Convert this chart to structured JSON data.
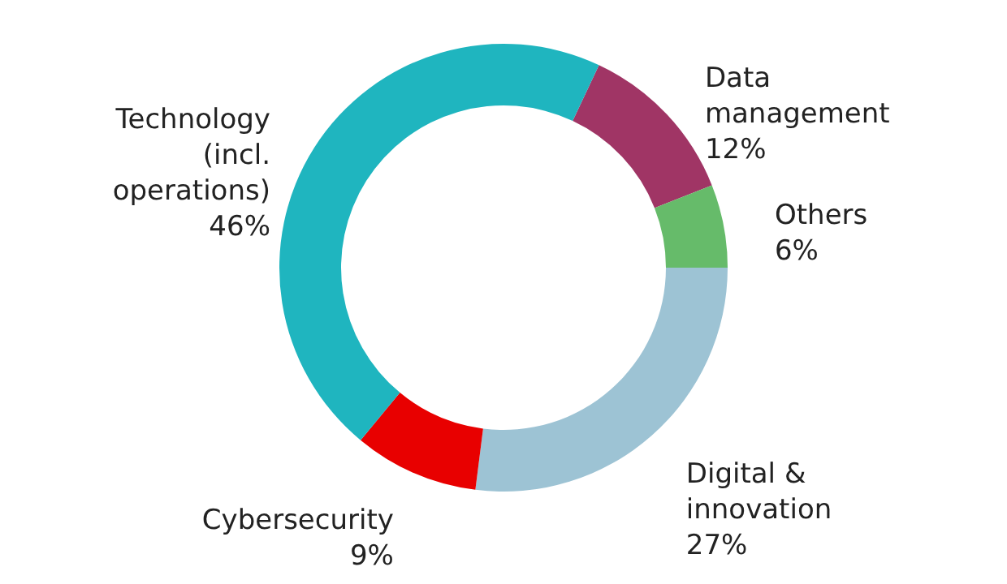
{
  "chart_data": {
    "type": "donut",
    "categories": [
      "Data management",
      "Others",
      "Digital & innovation",
      "Cybersecurity",
      "Technology (incl. operations)"
    ],
    "values": [
      12,
      6,
      27,
      9,
      46
    ],
    "colors": [
      "#a03565",
      "#66bb6a",
      "#9dc3d4",
      "#e80000",
      "#1fb5bf"
    ],
    "value_labels": [
      "12%",
      "6%",
      "27%",
      "9%",
      "46%"
    ]
  }
}
